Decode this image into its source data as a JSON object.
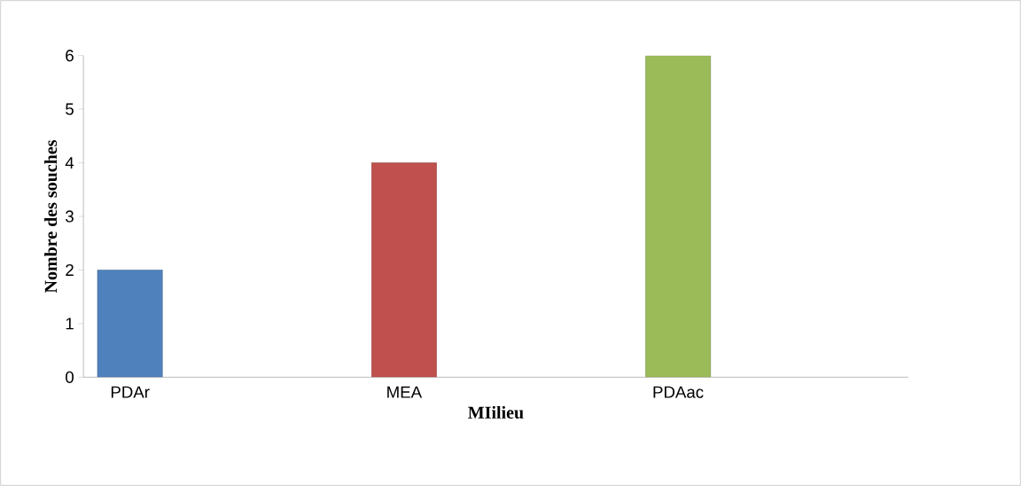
{
  "chart_data": {
    "type": "bar",
    "xlabel": "MIilieu",
    "ylabel": "Nombre des souches",
    "categories": [
      "PDAr",
      "MEA",
      "PDAac"
    ],
    "values": [
      2,
      4,
      6
    ],
    "colors": [
      "#4f81bd",
      "#c0504d",
      "#9bbb59"
    ],
    "ylim": [
      0,
      6
    ],
    "yticks": [
      0,
      1,
      2,
      3,
      4,
      5,
      6
    ],
    "grid": false
  }
}
